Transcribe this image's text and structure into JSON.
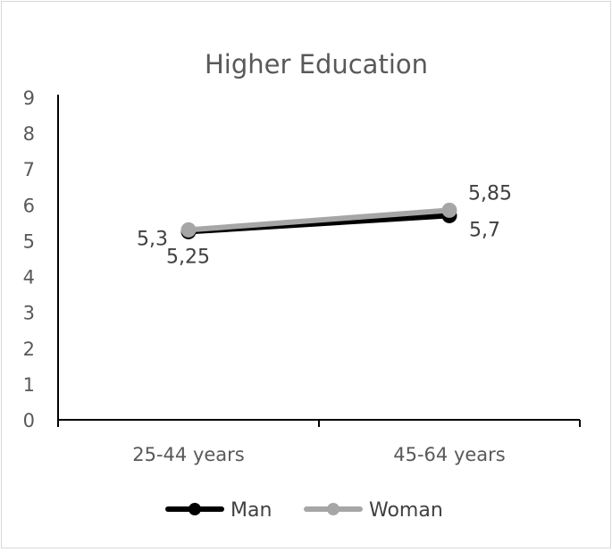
{
  "chart_data": {
    "type": "line",
    "title": "Higher Education",
    "xlabel": "",
    "ylabel": "",
    "categories": [
      "25-44 years",
      "45-64 years"
    ],
    "ylim": [
      0,
      9
    ],
    "yticks": [
      "0",
      "1",
      "2",
      "3",
      "4",
      "5",
      "6",
      "7",
      "8",
      "9"
    ],
    "grid": false,
    "legend": "bottom",
    "series": [
      {
        "name": "Man",
        "values": [
          5.25,
          5.7
        ],
        "labels": [
          "5,25",
          "5,7"
        ],
        "color": "#000000"
      },
      {
        "name": "Woman",
        "values": [
          5.3,
          5.85
        ],
        "labels": [
          "5,3",
          "5,85"
        ],
        "color": "#a6a6a6"
      }
    ]
  }
}
